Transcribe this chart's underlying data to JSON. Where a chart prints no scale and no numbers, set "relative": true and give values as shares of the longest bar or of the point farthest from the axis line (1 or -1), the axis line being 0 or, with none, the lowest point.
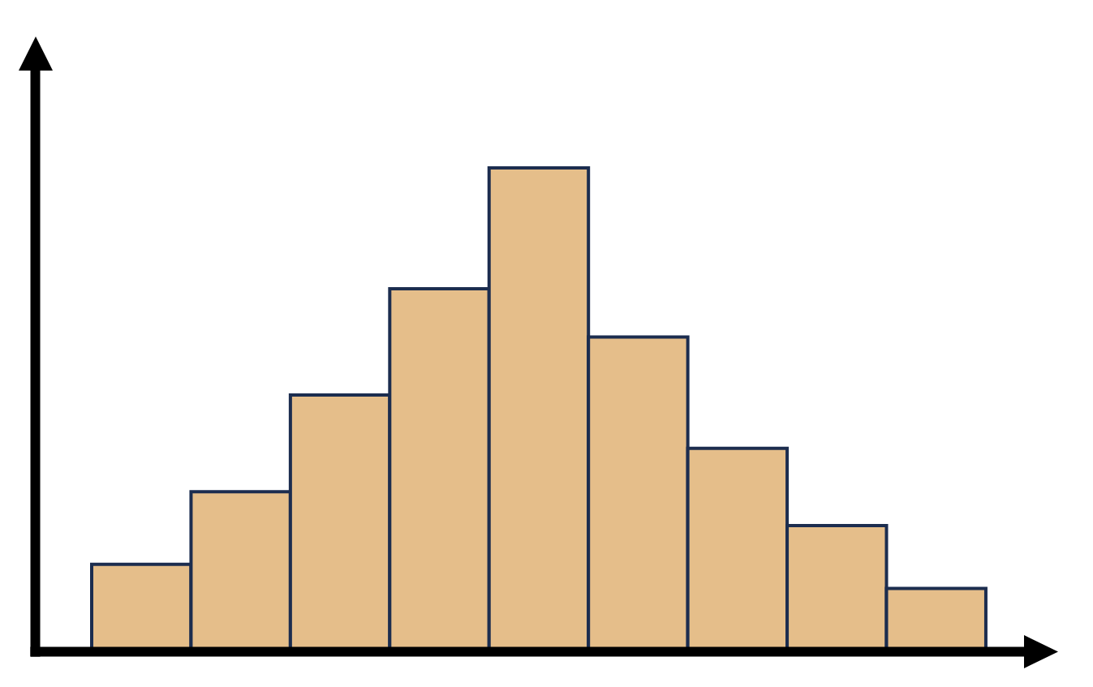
{
  "chart_data": {
    "type": "bar",
    "relative": true,
    "color": "#e5be8a",
    "categories": [
      null,
      null,
      null,
      null,
      null,
      null,
      null,
      null,
      null
    ],
    "values": [
      0.18,
      0.33,
      0.53,
      0.75,
      1,
      0.65,
      0.42,
      0.26,
      0.13
    ]
  }
}
